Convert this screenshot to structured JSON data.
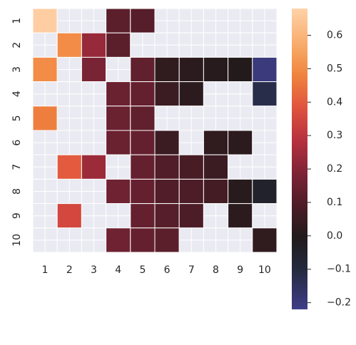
{
  "chart_data": {
    "type": "heatmap",
    "title": "",
    "xlabel": "",
    "ylabel": "",
    "x_categories": [
      "1",
      "2",
      "3",
      "4",
      "5",
      "6",
      "7",
      "8",
      "9",
      "10"
    ],
    "y_categories": [
      "1",
      "2",
      "3",
      "4",
      "5",
      "6",
      "7",
      "8",
      "9",
      "10"
    ],
    "values": [
      [
        0.67,
        null,
        null,
        0.12,
        0.11,
        null,
        null,
        null,
        null,
        null
      ],
      [
        null,
        0.5,
        0.23,
        0.12,
        null,
        null,
        null,
        null,
        null,
        null
      ],
      [
        0.5,
        null,
        0.18,
        null,
        0.13,
        0.03,
        0.02,
        0.01,
        0.0,
        -0.2
      ],
      [
        null,
        null,
        null,
        0.15,
        0.14,
        0.05,
        0.02,
        null,
        null,
        -0.12
      ],
      [
        0.47,
        null,
        null,
        0.15,
        0.13,
        null,
        null,
        null,
        null,
        null
      ],
      [
        null,
        null,
        null,
        0.15,
        0.14,
        0.05,
        null,
        0.03,
        0.02,
        null
      ],
      [
        null,
        0.4,
        0.24,
        null,
        0.14,
        0.1,
        0.08,
        0.05,
        null,
        null
      ],
      [
        null,
        null,
        null,
        0.16,
        0.14,
        0.1,
        0.09,
        0.07,
        0.01,
        -0.05
      ],
      [
        null,
        0.35,
        null,
        null,
        0.14,
        0.11,
        0.09,
        null,
        0.02,
        null
      ],
      [
        null,
        null,
        null,
        0.16,
        0.14,
        0.12,
        null,
        null,
        null,
        0.03
      ]
    ],
    "colorbar": {
      "min": -0.22,
      "max": 0.68,
      "ticks": [
        0.6,
        0.5,
        0.4,
        0.3,
        0.2,
        0.1,
        0.0,
        -0.1,
        -0.2
      ],
      "tick_labels": [
        "0.6",
        "0.5",
        "0.4",
        "0.3",
        "0.2",
        "0.1",
        "0.0",
        "−0.1",
        "−0.2"
      ],
      "colormap": "icefire"
    },
    "missing_color": "#eaeaf2",
    "grid_color": "#ffffff",
    "grid": true
  }
}
